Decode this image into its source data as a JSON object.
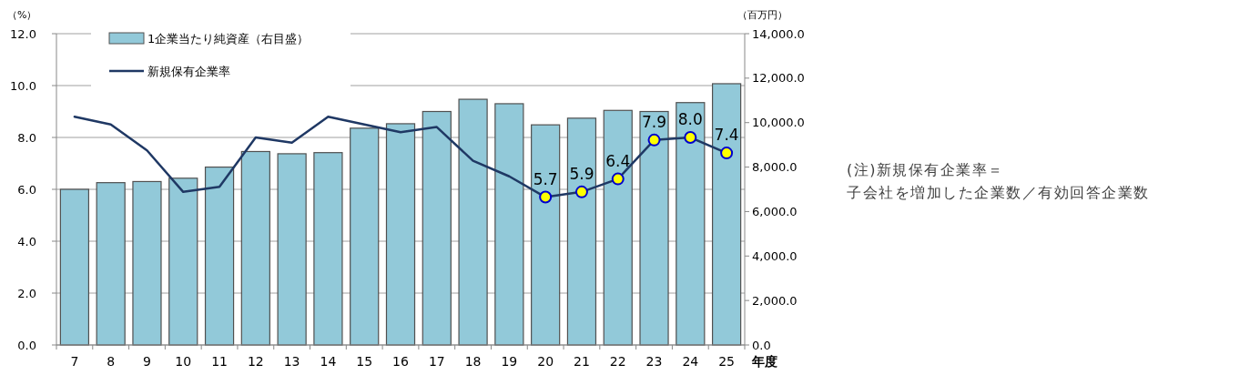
{
  "chart_data": {
    "type": "bar",
    "categories": [
      "7",
      "8",
      "9",
      "10",
      "11",
      "12",
      "13",
      "14",
      "15",
      "16",
      "17",
      "18",
      "19",
      "20",
      "21",
      "22",
      "23",
      "24",
      "25"
    ],
    "xlabel": "年度",
    "ylabel": "（%）",
    "y2label": "（百万円）",
    "ylim": [
      0,
      12
    ],
    "yticks": [
      {
        "value": 0,
        "label": "0.0"
      },
      {
        "value": 2,
        "label": "2.0"
      },
      {
        "value": 4,
        "label": "4.0"
      },
      {
        "value": 6,
        "label": "6.0"
      },
      {
        "value": 8,
        "label": "8.0"
      },
      {
        "value": 10,
        "label": "10.0"
      },
      {
        "value": 12,
        "label": "12.0"
      }
    ],
    "y2lim": [
      0,
      14000
    ],
    "y2ticks": [
      {
        "value": 0,
        "label": "0.0"
      },
      {
        "value": 2000,
        "label": "2,000.0"
      },
      {
        "value": 4000,
        "label": "4,000.0"
      },
      {
        "value": 6000,
        "label": "6,000.0"
      },
      {
        "value": 8000,
        "label": "8,000.0"
      },
      {
        "value": 10000,
        "label": "10,000.0"
      },
      {
        "value": 12000,
        "label": "12,000.0"
      },
      {
        "value": 14000,
        "label": "14,000.0"
      }
    ],
    "grid": "y",
    "legend": "top left",
    "series": [
      {
        "name": "1企業当たり純資産（右目盛）",
        "axis": "y2",
        "color": "#92c9d9",
        "values": [
          7000,
          7300,
          7350,
          7500,
          8000,
          8700,
          8600,
          8650,
          9750,
          9950,
          10500,
          11050,
          10850,
          9900,
          10200,
          10550,
          10500,
          10900,
          11750
        ]
      },
      {
        "name": "新規保有企業率",
        "type": "line",
        "color": "#1f3864",
        "marker": "none",
        "values": [
          8.8,
          8.5,
          7.5,
          5.9,
          6.1,
          8.0,
          7.8,
          8.8,
          8.5,
          8.2,
          8.4,
          7.1,
          6.5,
          5.7,
          5.9,
          6.4,
          7.9,
          8.0,
          7.4
        ]
      },
      {
        "type": "scatter",
        "x": [
          "20",
          "21",
          "22",
          "23",
          "24",
          "25"
        ],
        "color": "#ffff00",
        "marker": "circle",
        "values": [
          5.7,
          5.9,
          6.4,
          7.9,
          8.0,
          7.4
        ],
        "value_labels": [
          "5.7",
          "5.9",
          "6.4",
          "7.9",
          "8.0",
          "7.4"
        ]
      }
    ],
    "annotations": [
      "(注)新規保有企業率＝",
      "子会社を増加した企業数／有効回答企業数"
    ]
  }
}
